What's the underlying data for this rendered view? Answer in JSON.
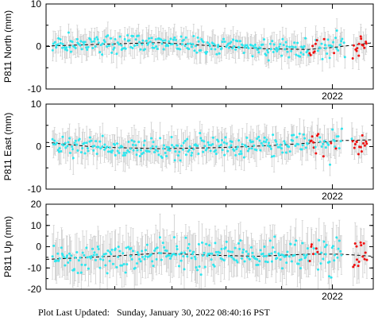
{
  "chart_data": [
    {
      "type": "scatter",
      "ylabel": "P811 North (mm)",
      "ylim": [
        -10,
        10
      ],
      "yticks": [
        -10,
        0,
        10
      ],
      "xtick_label": "2022",
      "noise": 1.6,
      "errbar": 2.2,
      "trend": [
        [
          0,
          0.1
        ],
        [
          0.2,
          0.6
        ],
        [
          0.35,
          0.9
        ],
        [
          0.5,
          0.2
        ],
        [
          0.65,
          -0.5
        ],
        [
          0.8,
          -0.7
        ],
        [
          0.88,
          -0.2
        ],
        [
          1,
          0.9
        ]
      ],
      "colors": {
        "data": "#2ee6ee",
        "recent": "#ee1111",
        "trend": "#000000",
        "error": "#cccccc"
      }
    },
    {
      "type": "scatter",
      "ylabel": "P811 East (mm)",
      "ylim": [
        -10,
        10
      ],
      "yticks": [
        -10,
        0,
        10
      ],
      "xtick_label": "2022",
      "noise": 1.8,
      "errbar": 2.6,
      "trend": [
        [
          0,
          1.0
        ],
        [
          0.15,
          -0.1
        ],
        [
          0.35,
          -0.5
        ],
        [
          0.55,
          -0.2
        ],
        [
          0.7,
          0.3
        ],
        [
          0.82,
          0.9
        ],
        [
          0.9,
          1.4
        ],
        [
          1,
          1.6
        ]
      ],
      "colors": {
        "data": "#2ee6ee",
        "recent": "#ee1111",
        "trend": "#000000",
        "error": "#cccccc"
      }
    },
    {
      "type": "scatter",
      "ylabel": "P811 Up (mm)",
      "ylim": [
        -20,
        20
      ],
      "yticks": [
        -20,
        -10,
        0,
        10,
        20
      ],
      "xtick_label": "2022",
      "noise": 5.0,
      "errbar": 7.5,
      "trend": [
        [
          0,
          -6
        ],
        [
          0.2,
          -4.5
        ],
        [
          0.35,
          -3
        ],
        [
          0.5,
          -4
        ],
        [
          0.65,
          -4.5
        ],
        [
          0.8,
          -3.5
        ],
        [
          0.9,
          -3.5
        ],
        [
          1,
          -4.5
        ]
      ],
      "colors": {
        "data": "#2ee6ee",
        "recent": "#ee1111",
        "trend": "#000000",
        "error": "#cccccc"
      }
    }
  ],
  "footer": {
    "label": "Plot Last Updated:",
    "timestamp": "Sunday, January 30, 2022 08:40:16 PST"
  }
}
